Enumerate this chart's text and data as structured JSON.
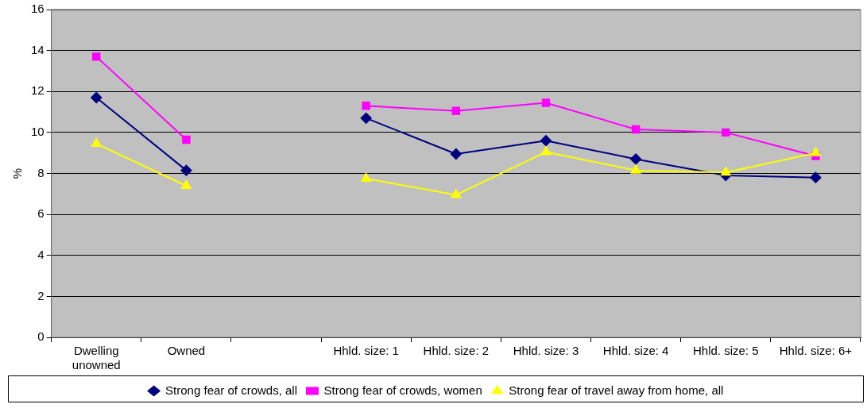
{
  "chart_data": {
    "type": "line",
    "ylabel": "%",
    "categories": [
      "Dwelling unowned",
      "Owned",
      null,
      "Hhld. size: 1",
      "Hhld. size: 2",
      "Hhld. size: 3",
      "Hhld. size: 4",
      "Hhld. size: 5",
      "Hhld. size: 6+"
    ],
    "series": [
      {
        "name": "Strong fear of crowds, all",
        "color": "#000080",
        "marker": "diamond",
        "values": [
          11.7,
          8.15,
          null,
          10.7,
          8.95,
          9.6,
          8.7,
          7.9,
          7.8
        ]
      },
      {
        "name": "Strong fear of crowds, women",
        "color": "#ff00ff",
        "marker": "square",
        "values": [
          13.7,
          9.65,
          null,
          11.3,
          11.05,
          11.45,
          10.15,
          10.0,
          8.85
        ]
      },
      {
        "name": "Strong fear of travel away from home, all",
        "color": "#ffff00",
        "marker": "triangle",
        "values": [
          9.45,
          7.4,
          null,
          7.75,
          6.95,
          9.05,
          8.15,
          8.05,
          9.0
        ]
      }
    ],
    "ylim": [
      0,
      16
    ],
    "yticks": [
      0,
      2,
      4,
      6,
      8,
      10,
      12,
      14,
      16
    ],
    "grid": "y",
    "legend": "bottom"
  }
}
